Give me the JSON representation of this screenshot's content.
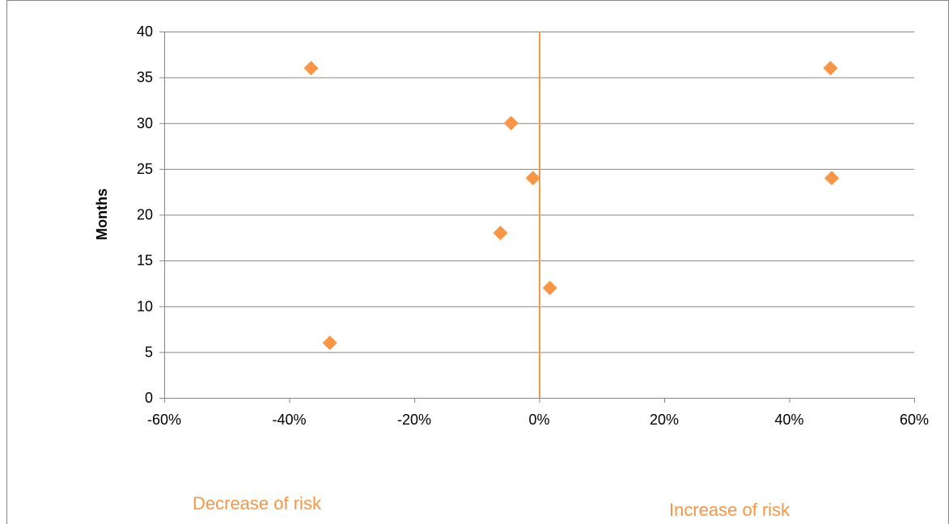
{
  "chart_data": {
    "type": "scatter",
    "title": "",
    "xlabel": "",
    "ylabel": "Months",
    "xlim": [
      -0.6,
      0.6
    ],
    "ylim": [
      0,
      40
    ],
    "x_ticks": [
      -0.6,
      -0.4,
      -0.2,
      0,
      0.2,
      0.4,
      0.6
    ],
    "x_tick_labels": [
      "-60%",
      "-40%",
      "-20%",
      "0%",
      "20%",
      "40%",
      "60%"
    ],
    "y_ticks": [
      0,
      5,
      10,
      15,
      20,
      25,
      30,
      35,
      40
    ],
    "y_tick_labels": [
      "0",
      "5",
      "10",
      "15",
      "20",
      "25",
      "30",
      "35",
      "40"
    ],
    "grid": "horizontal",
    "legend": "none",
    "reference_line_x": 0,
    "series": [
      {
        "marker": "diamond",
        "color": "#F79646",
        "points": [
          {
            "x": -0.365,
            "y": 36
          },
          {
            "x": -0.335,
            "y": 6
          },
          {
            "x": -0.045,
            "y": 30
          },
          {
            "x": -0.062,
            "y": 18
          },
          {
            "x": -0.01,
            "y": 24
          },
          {
            "x": 0.017,
            "y": 12
          },
          {
            "x": 0.466,
            "y": 36
          },
          {
            "x": 0.468,
            "y": 24
          }
        ]
      }
    ],
    "annotations": [
      {
        "text": "Decrease of risk",
        "side": "left"
      },
      {
        "text": "Increase of risk",
        "side": "right"
      }
    ],
    "colors": {
      "marker": "#F79646",
      "reference_line": "#F79646",
      "annotation_text": "#F79646",
      "grid": "#868686",
      "axis": "#868686",
      "border": "#868686"
    }
  }
}
